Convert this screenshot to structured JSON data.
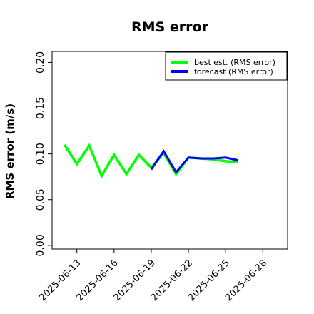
{
  "chart_data": {
    "type": "line",
    "title": "RMS error",
    "xlabel": "",
    "ylabel": "RMS error (m/s)",
    "x_ticks": [
      "2025-06-13",
      "2025-06-16",
      "2025-06-19",
      "2025-06-22",
      "2025-06-25",
      "2025-06-28"
    ],
    "highlight_tick": "2025-06-19",
    "highlight_color": "#228b22",
    "x_range": [
      "2025-06-11",
      "2025-06-30"
    ],
    "ylim": [
      -0.004,
      0.212
    ],
    "y_ticks": [
      "0.00",
      "0.05",
      "0.10",
      "0.15",
      "0.20"
    ],
    "grid": false,
    "legend_position": "top-right",
    "series": [
      {
        "name": "best est. (RMS error)",
        "color": "#00ff00",
        "points": [
          [
            "2025-06-12",
            0.11
          ],
          [
            "2025-06-13",
            0.089
          ],
          [
            "2025-06-14",
            0.109
          ],
          [
            "2025-06-15",
            0.076
          ],
          [
            "2025-06-16",
            0.099
          ],
          [
            "2025-06-17",
            0.078
          ],
          [
            "2025-06-18",
            0.099
          ],
          [
            "2025-06-19",
            0.085
          ],
          [
            "2025-06-20",
            0.101
          ],
          [
            "2025-06-21",
            0.078
          ],
          [
            "2025-06-22",
            0.096
          ],
          [
            "2025-06-23",
            0.095
          ],
          [
            "2025-06-24",
            0.094
          ],
          [
            "2025-06-25",
            0.092
          ],
          [
            "2025-06-26",
            0.091
          ]
        ]
      },
      {
        "name": "forecast (RMS error)",
        "color": "#0000ff",
        "points": [
          [
            "2025-06-19",
            0.083
          ],
          [
            "2025-06-20",
            0.103
          ],
          [
            "2025-06-21",
            0.08
          ],
          [
            "2025-06-22",
            0.096
          ],
          [
            "2025-06-23",
            0.095
          ],
          [
            "2025-06-24",
            0.095
          ],
          [
            "2025-06-25",
            0.096
          ],
          [
            "2025-06-26",
            0.093
          ]
        ]
      }
    ]
  }
}
